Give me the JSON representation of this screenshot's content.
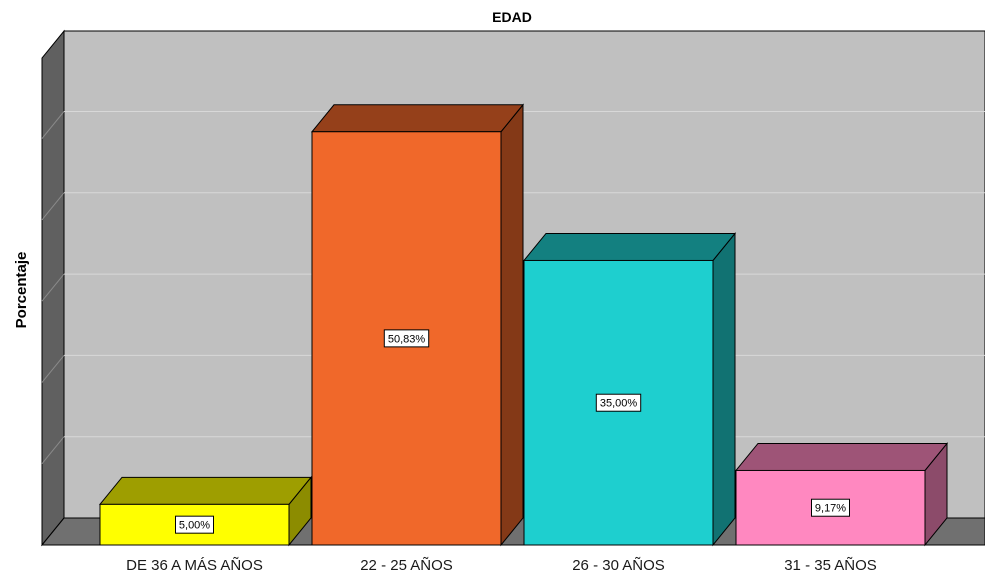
{
  "chart_data": {
    "type": "bar",
    "title": "EDAD",
    "xlabel": "",
    "ylabel": "Porcentaje",
    "categories": [
      "DE 36 A MÁS AÑOS",
      "22 - 25 AÑOS",
      "26 - 30 AÑOS",
      "31 - 35 AÑOS"
    ],
    "values": [
      5.0,
      50.83,
      35.0,
      9.17
    ],
    "value_labels": [
      "5,00%",
      "50,83%",
      "35,00%",
      "9,17%"
    ],
    "ylim": [
      0,
      60
    ],
    "grid": true,
    "legend": "none",
    "style": "3d",
    "colors": {
      "bars": [
        "#FFFF00",
        "#F0682A",
        "#1ECFCF",
        "#FF88C0"
      ],
      "wall": "#C0C0C0",
      "side_wall": "#606060",
      "floor": "#707070",
      "gridline": "#D8D8D8"
    }
  }
}
